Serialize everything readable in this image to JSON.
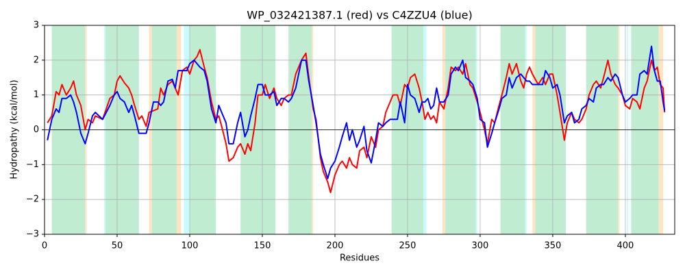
{
  "chart_data": {
    "type": "line",
    "title": "WP_032421387.1 (red) vs C4ZZU4 (blue)",
    "xlabel": "Residues",
    "ylabel": "Hydropathy (kcal/mol)",
    "xlim": [
      0,
      434
    ],
    "ylim": [
      -3,
      3
    ],
    "xticks": [
      0,
      50,
      100,
      150,
      200,
      250,
      300,
      350,
      400
    ],
    "yticks": [
      {
        "value": -3,
        "label": "−3"
      },
      {
        "value": -2,
        "label": "−2"
      },
      {
        "value": -1,
        "label": "−1"
      },
      0,
      1,
      2,
      3
    ],
    "grid": true,
    "hlines": [
      0
    ],
    "regions": [
      {
        "start": 5,
        "end": 28,
        "color": "#c0ecd2"
      },
      {
        "start": 28,
        "end": 29,
        "color": "#fde5c3"
      },
      {
        "start": 41,
        "end": 42,
        "color": "#c9fbfd"
      },
      {
        "start": 42,
        "end": 65,
        "color": "#c0ecd2"
      },
      {
        "start": 72,
        "end": 74,
        "color": "#fde5c3"
      },
      {
        "start": 74,
        "end": 91,
        "color": "#c0ecd2"
      },
      {
        "start": 91,
        "end": 94,
        "color": "#fde5c3"
      },
      {
        "start": 96,
        "end": 100,
        "color": "#c9fbfd"
      },
      {
        "start": 100,
        "end": 118,
        "color": "#c0ecd2"
      },
      {
        "start": 135,
        "end": 159,
        "color": "#c0ecd2"
      },
      {
        "start": 168,
        "end": 184,
        "color": "#c0ecd2"
      },
      {
        "start": 184,
        "end": 185,
        "color": "#fde5c3"
      },
      {
        "start": 239,
        "end": 261,
        "color": "#c0ecd2"
      },
      {
        "start": 261,
        "end": 263,
        "color": "#c9fbfd"
      },
      {
        "start": 274,
        "end": 276,
        "color": "#fde5c3"
      },
      {
        "start": 276,
        "end": 297,
        "color": "#c0ecd2"
      },
      {
        "start": 297,
        "end": 298,
        "color": "#c9fbfd"
      },
      {
        "start": 314,
        "end": 331,
        "color": "#c0ecd2"
      },
      {
        "start": 331,
        "end": 332,
        "color": "#c9fbfd"
      },
      {
        "start": 336,
        "end": 338,
        "color": "#fde5c3"
      },
      {
        "start": 338,
        "end": 359,
        "color": "#c0ecd2"
      },
      {
        "start": 373,
        "end": 395,
        "color": "#c0ecd2"
      },
      {
        "start": 395,
        "end": 396,
        "color": "#fde5c3"
      },
      {
        "start": 401,
        "end": 402,
        "color": "#c9fbfd"
      },
      {
        "start": 404,
        "end": 423,
        "color": "#c0ecd2"
      },
      {
        "start": 423,
        "end": 426,
        "color": "#fde5c3"
      }
    ],
    "x": [
      2,
      5,
      8,
      10,
      12,
      15,
      18,
      20,
      22,
      25,
      28,
      30,
      33,
      35,
      40,
      45,
      48,
      50,
      52,
      55,
      58,
      60,
      62,
      65,
      67,
      70,
      72,
      75,
      78,
      80,
      82,
      85,
      88,
      90,
      92,
      95,
      98,
      100,
      103,
      105,
      107,
      110,
      112,
      115,
      118,
      120,
      122,
      125,
      127,
      130,
      133,
      135,
      138,
      140,
      142,
      145,
      147,
      150,
      152,
      155,
      158,
      160,
      163,
      165,
      168,
      170,
      173,
      175,
      177,
      180,
      182,
      185,
      187,
      190,
      192,
      195,
      197,
      200,
      203,
      205,
      208,
      210,
      212,
      215,
      217,
      220,
      222,
      225,
      228,
      230,
      233,
      235,
      238,
      240,
      243,
      245,
      248,
      250,
      252,
      255,
      258,
      260,
      262,
      264,
      266,
      268,
      270,
      272,
      275,
      278,
      280,
      283,
      285,
      288,
      290,
      293,
      295,
      298,
      300,
      303,
      305,
      308,
      310,
      313,
      315,
      318,
      320,
      322,
      325,
      328,
      330,
      332,
      334,
      336,
      340,
      343,
      345,
      348,
      350,
      353,
      355,
      358,
      360,
      363,
      365,
      368,
      370,
      373,
      375,
      378,
      380,
      383,
      385,
      388,
      390,
      393,
      395,
      398,
      400,
      403,
      405,
      408,
      410,
      413,
      415,
      418,
      420,
      422,
      424,
      426,
      427
    ],
    "series": [
      {
        "name": "WP_032421387.1",
        "color": "#ff0000",
        "values": [
          0.2,
          0.4,
          1.1,
          1.0,
          1.3,
          1.0,
          1.2,
          1.4,
          1.0,
          0.7,
          0.0,
          0.3,
          0.2,
          0.4,
          0.3,
          0.9,
          1.0,
          1.4,
          1.55,
          1.35,
          1.2,
          1.0,
          0.7,
          0.3,
          0.4,
          0.1,
          0.5,
          0.55,
          0.6,
          1.2,
          1.0,
          1.3,
          1.4,
          1.2,
          1.0,
          1.7,
          1.8,
          1.6,
          2.0,
          2.1,
          2.3,
          1.8,
          1.5,
          0.8,
          0.3,
          0.4,
          0.1,
          -0.4,
          -0.9,
          -0.8,
          -0.5,
          -0.4,
          -0.7,
          -0.4,
          -0.6,
          0.2,
          1.0,
          1.0,
          1.3,
          0.9,
          1.2,
          0.9,
          0.7,
          0.9,
          1.0,
          1.0,
          1.6,
          1.8,
          2.0,
          2.2,
          1.5,
          0.6,
          0.3,
          -0.8,
          -1.2,
          -1.5,
          -1.8,
          -1.3,
          -1.0,
          -0.9,
          -1.1,
          -0.8,
          -1.0,
          -1.1,
          -0.6,
          -0.5,
          -0.8,
          -0.2,
          -0.5,
          0.0,
          0.1,
          0.5,
          0.8,
          1.0,
          1.0,
          0.7,
          1.3,
          1.2,
          1.5,
          1.6,
          1.2,
          0.8,
          0.3,
          0.5,
          0.3,
          0.4,
          0.2,
          0.8,
          0.6,
          1.2,
          1.8,
          1.7,
          1.8,
          1.6,
          1.9,
          1.3,
          1.2,
          0.8,
          0.5,
          0.0,
          -0.4,
          0.3,
          0.2,
          0.7,
          1.0,
          1.5,
          1.9,
          1.6,
          1.9,
          1.4,
          1.2,
          1.6,
          1.8,
          1.6,
          1.3,
          1.5,
          1.3,
          1.6,
          1.6,
          1.0,
          0.5,
          -0.3,
          0.2,
          0.5,
          0.3,
          0.2,
          0.3,
          0.6,
          1.0,
          1.3,
          1.4,
          1.2,
          1.5,
          2.0,
          1.6,
          1.3,
          1.2,
          1.0,
          0.7,
          0.6,
          0.9,
          0.8,
          0.6,
          1.2,
          1.4,
          2.0,
          1.7,
          1.8,
          1.3,
          1.2,
          0.5
        ]
      },
      {
        "name": "C4ZZU4",
        "color": "#0000ff",
        "values": [
          -0.3,
          0.3,
          0.6,
          0.5,
          0.9,
          0.9,
          1.0,
          0.8,
          0.5,
          -0.1,
          -0.4,
          -0.1,
          0.4,
          0.5,
          0.3,
          0.7,
          1.0,
          1.1,
          0.9,
          0.8,
          0.5,
          0.7,
          0.4,
          -0.1,
          -0.1,
          -0.1,
          0.2,
          0.8,
          0.8,
          0.7,
          0.8,
          1.4,
          1.45,
          1.2,
          1.7,
          1.7,
          1.7,
          1.9,
          2.0,
          1.9,
          1.8,
          1.7,
          1.4,
          0.6,
          0.2,
          0.7,
          0.5,
          0.2,
          -0.4,
          -0.4,
          0.2,
          0.5,
          -0.2,
          0.0,
          0.4,
          0.9,
          1.3,
          1.3,
          1.0,
          1.0,
          1.1,
          0.7,
          0.9,
          0.9,
          0.8,
          0.9,
          1.2,
          1.6,
          2.0,
          2.0,
          1.4,
          0.7,
          0.2,
          -0.7,
          -1.0,
          -1.4,
          -1.1,
          -0.9,
          -0.5,
          -0.2,
          0.2,
          -0.3,
          0.0,
          -0.5,
          -0.3,
          0.1,
          -0.6,
          -0.95,
          -0.3,
          0.2,
          0.1,
          0.2,
          0.3,
          0.3,
          0.3,
          0.8,
          0.2,
          1.3,
          1.0,
          0.9,
          0.5,
          0.8,
          0.8,
          0.9,
          0.6,
          0.7,
          1.2,
          0.8,
          0.8,
          1.0,
          1.6,
          1.8,
          1.7,
          2.0,
          1.5,
          1.4,
          1.3,
          0.9,
          0.3,
          0.2,
          -0.5,
          -0.1,
          0.2,
          0.6,
          0.9,
          1.0,
          1.5,
          1.2,
          1.5,
          1.6,
          1.5,
          1.4,
          1.4,
          1.3,
          1.3,
          1.3,
          1.7,
          1.5,
          1.2,
          1.3,
          1.0,
          0.2,
          0.4,
          0.5,
          0.2,
          0.3,
          0.6,
          0.7,
          0.9,
          0.8,
          1.2,
          1.3,
          1.3,
          1.5,
          1.4,
          1.6,
          1.5,
          1.0,
          0.8,
          0.9,
          1.0,
          1.0,
          1.6,
          1.7,
          1.6,
          2.4,
          1.7,
          1.4,
          1.4,
          0.8,
          0.55
        ]
      }
    ]
  }
}
